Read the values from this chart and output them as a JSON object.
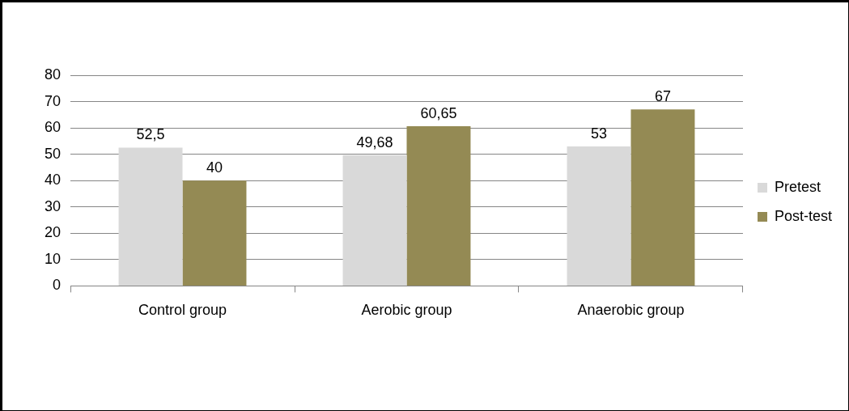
{
  "chart_data": {
    "type": "bar",
    "categories": [
      "Control group",
      "Aerobic group",
      "Anaerobic group"
    ],
    "series": [
      {
        "name": "Pretest",
        "color": "#d9d9d9",
        "values": [
          52.5,
          49.68,
          53
        ],
        "value_labels": [
          "52,5",
          "49,68",
          "53"
        ]
      },
      {
        "name": "Post-test",
        "color": "#948a54",
        "values": [
          40,
          60.65,
          67
        ],
        "value_labels": [
          "40",
          "60,65",
          "67"
        ]
      }
    ],
    "ylim": [
      0,
      80
    ],
    "yticks": [
      0,
      10,
      20,
      30,
      40,
      50,
      60,
      70,
      80
    ],
    "grid": "y",
    "legend": "right"
  }
}
